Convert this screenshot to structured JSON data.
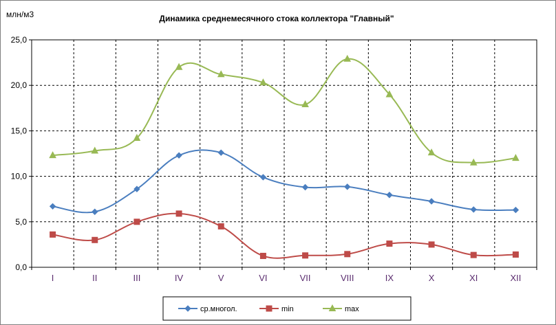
{
  "chart_data": {
    "type": "line",
    "title": "Динамика среднемесячного стока коллектора \"Главный\"",
    "ylabel": "млн/м3",
    "xlabel": "",
    "categories": [
      "I",
      "II",
      "III",
      "IV",
      "V",
      "VI",
      "VII",
      "VIII",
      "IX",
      "X",
      "XI",
      "XII"
    ],
    "ylim": [
      0,
      25
    ],
    "yticks": [
      "0,0",
      "5,0",
      "10,0",
      "15,0",
      "20,0",
      "25,0"
    ],
    "grid": true,
    "legend_position": "bottom",
    "series": [
      {
        "name": "ср.многол.",
        "color": "#4a7ebf",
        "marker": "diamond",
        "values": [
          6.7,
          6.1,
          8.6,
          12.3,
          12.6,
          9.9,
          8.8,
          8.85,
          7.95,
          7.25,
          6.35,
          6.3
        ]
      },
      {
        "name": "min",
        "color": "#be4b48",
        "marker": "square",
        "values": [
          3.6,
          3.0,
          5.0,
          5.9,
          4.5,
          1.25,
          1.3,
          1.45,
          2.6,
          2.5,
          1.35,
          1.4
        ]
      },
      {
        "name": "max",
        "color": "#98b954",
        "marker": "triangle",
        "values": [
          12.3,
          12.8,
          14.2,
          22.0,
          21.2,
          20.3,
          17.9,
          22.9,
          19.0,
          12.6,
          11.5,
          12.0
        ]
      }
    ]
  }
}
